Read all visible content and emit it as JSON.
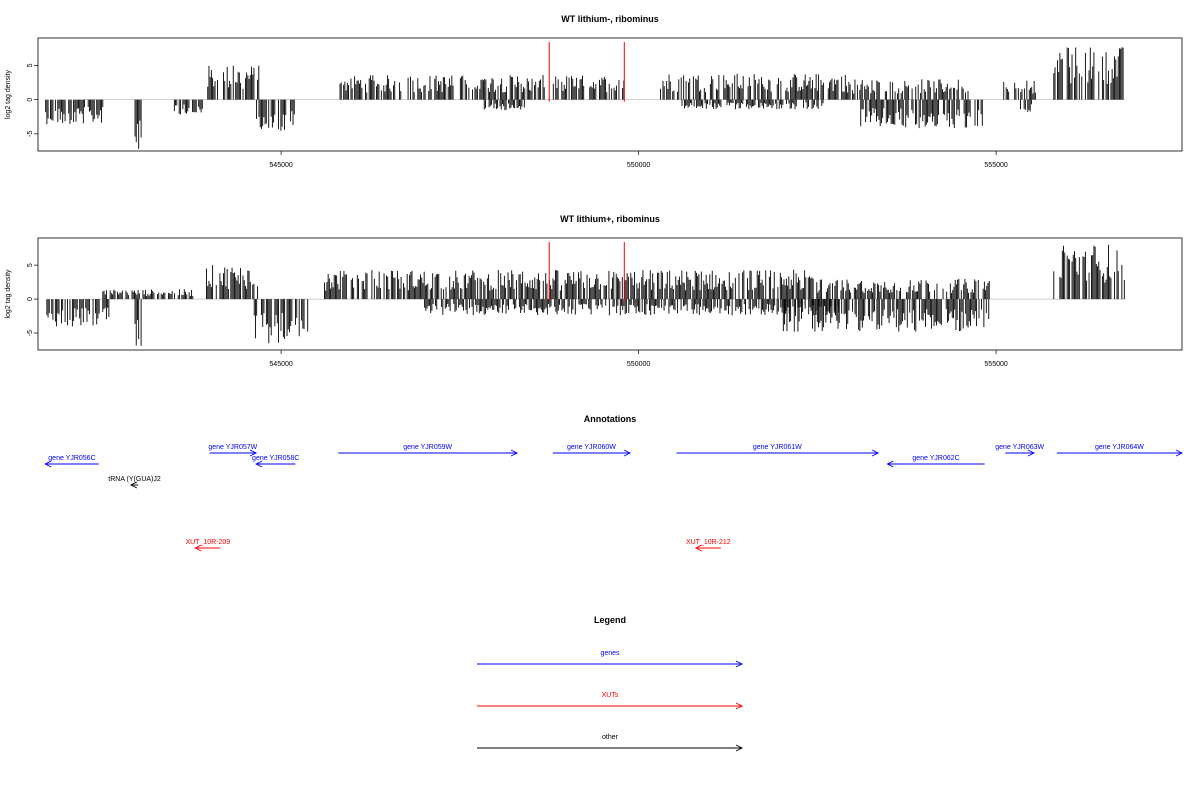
{
  "chart_data": [
    {
      "type": "bar",
      "title": "WT lithium-, ribominus",
      "ylabel": "log2 tag density",
      "xlabel": "",
      "xlim": [
        541600,
        557600
      ],
      "ylim": [
        -7.5,
        9
      ],
      "x_ticks": [
        545000,
        550000,
        555000
      ],
      "x_tick_labels": [
        "545000",
        "550000",
        "555000"
      ],
      "y_ticks": [
        -5,
        0,
        5
      ],
      "y_tick_labels": [
        "-5",
        "0",
        "5"
      ],
      "markers": {
        "positions": [
          548750,
          549800
        ],
        "color": "#ff0000",
        "label": ""
      },
      "regions": [
        {
          "start": 541700,
          "end": 542500,
          "strand": "-",
          "level": 3.0
        },
        {
          "start": 542950,
          "end": 543050,
          "strand": "-",
          "level": 6.0
        },
        {
          "start": 543500,
          "end": 543900,
          "strand": "-",
          "level": 2.0
        },
        {
          "start": 543950,
          "end": 544700,
          "strand": "+",
          "level": 4.2
        },
        {
          "start": 544650,
          "end": 545200,
          "strand": "-",
          "level": 4.2
        },
        {
          "start": 545800,
          "end": 547400,
          "strand": "+",
          "level": 3.0
        },
        {
          "start": 547500,
          "end": 548700,
          "strand": "+",
          "level": 3.0
        },
        {
          "start": 547800,
          "end": 548400,
          "strand": "-",
          "level": 1.3
        },
        {
          "start": 548800,
          "end": 549800,
          "strand": "+",
          "level": 3.0
        },
        {
          "start": 550300,
          "end": 552900,
          "strand": "+",
          "level": 3.2
        },
        {
          "start": 550600,
          "end": 552600,
          "strand": "-",
          "level": 1.2
        },
        {
          "start": 552900,
          "end": 554600,
          "strand": "+",
          "level": 2.5
        },
        {
          "start": 553100,
          "end": 554800,
          "strand": "-",
          "level": 3.5
        },
        {
          "start": 555100,
          "end": 555600,
          "strand": "+",
          "level": 2.5
        },
        {
          "start": 555300,
          "end": 555500,
          "strand": "-",
          "level": 1.5
        },
        {
          "start": 555800,
          "end": 556800,
          "strand": "+",
          "level": 6.5
        }
      ]
    },
    {
      "type": "bar",
      "title": "WT lithium+, ribominus",
      "ylabel": "log2 tag density",
      "xlabel": "",
      "xlim": [
        541600,
        557600
      ],
      "ylim": [
        -7.5,
        9
      ],
      "x_ticks": [
        545000,
        550000,
        555000
      ],
      "x_tick_labels": [
        "545000",
        "550000",
        "555000"
      ],
      "y_ticks": [
        -5,
        0,
        5
      ],
      "y_tick_labels": [
        "-5",
        "0",
        "5"
      ],
      "markers": {
        "positions": [
          548750,
          549800
        ],
        "color": "#ff0000",
        "label": ""
      },
      "regions": [
        {
          "start": 541700,
          "end": 542600,
          "strand": "-",
          "level": 3.5
        },
        {
          "start": 542950,
          "end": 543050,
          "strand": "-",
          "level": 6.0
        },
        {
          "start": 542500,
          "end": 543800,
          "strand": "+",
          "level": 1.2
        },
        {
          "start": 543950,
          "end": 544700,
          "strand": "+",
          "level": 4.2
        },
        {
          "start": 544600,
          "end": 545400,
          "strand": "-",
          "level": 5.5
        },
        {
          "start": 545600,
          "end": 552500,
          "strand": "+",
          "level": 3.6
        },
        {
          "start": 547000,
          "end": 552800,
          "strand": "-",
          "level": 2.0
        },
        {
          "start": 552000,
          "end": 554900,
          "strand": "-",
          "level": 4.0
        },
        {
          "start": 552500,
          "end": 554900,
          "strand": "+",
          "level": 2.5
        },
        {
          "start": 555800,
          "end": 556800,
          "strand": "+",
          "level": 6.8
        }
      ]
    }
  ],
  "annotations": {
    "title": "Annotations",
    "xlim": [
      541600,
      557600
    ],
    "items": [
      {
        "label": "gene YJR056C",
        "start": 541700,
        "end": 542450,
        "strand": "-",
        "category": "genes",
        "row": 1
      },
      {
        "label": "tRNA (Y(GUA)J2",
        "start": 542900,
        "end": 543000,
        "strand": "-",
        "category": "other",
        "row": 2
      },
      {
        "label": "gene YJR057W",
        "start": 544000,
        "end": 544650,
        "strand": "+",
        "category": "genes",
        "row": 0
      },
      {
        "label": "gene YJR058C",
        "start": 544650,
        "end": 545200,
        "strand": "-",
        "category": "genes",
        "row": 1
      },
      {
        "label": "gene YJR059W",
        "start": 545800,
        "end": 548300,
        "strand": "+",
        "category": "genes",
        "row": 0
      },
      {
        "label": "gene YJR060W",
        "start": 548800,
        "end": 549880,
        "strand": "+",
        "category": "genes",
        "row": 0
      },
      {
        "label": "gene YJR061W",
        "start": 550530,
        "end": 553350,
        "strand": "+",
        "category": "genes",
        "row": 0
      },
      {
        "label": "gene YJR062C",
        "start": 553480,
        "end": 554840,
        "strand": "-",
        "category": "genes",
        "row": 1
      },
      {
        "label": "gene YJR063W",
        "start": 555130,
        "end": 555530,
        "strand": "+",
        "category": "genes",
        "row": 0
      },
      {
        "label": "gene YJR064W",
        "start": 555850,
        "end": 557600,
        "strand": "+",
        "category": "genes",
        "row": 0
      },
      {
        "label": "XUT_10R-209",
        "start": 543800,
        "end": 544150,
        "strand": "-",
        "category": "XUTs",
        "row": 3
      },
      {
        "label": "XUT_10R-212",
        "start": 550800,
        "end": 551150,
        "strand": "-",
        "category": "XUTs",
        "row": 3
      }
    ]
  },
  "legend": {
    "title": "Legend",
    "items": [
      {
        "label": "genes",
        "color": "#0000ff"
      },
      {
        "label": "XUTs",
        "color": "#ff0000"
      },
      {
        "label": "other",
        "color": "#000000"
      }
    ]
  },
  "colors": {
    "genes": "#0000ff",
    "XUTs": "#ff0000",
    "other": "#000000",
    "axis": "#000000",
    "baseline": "#bebebe"
  }
}
